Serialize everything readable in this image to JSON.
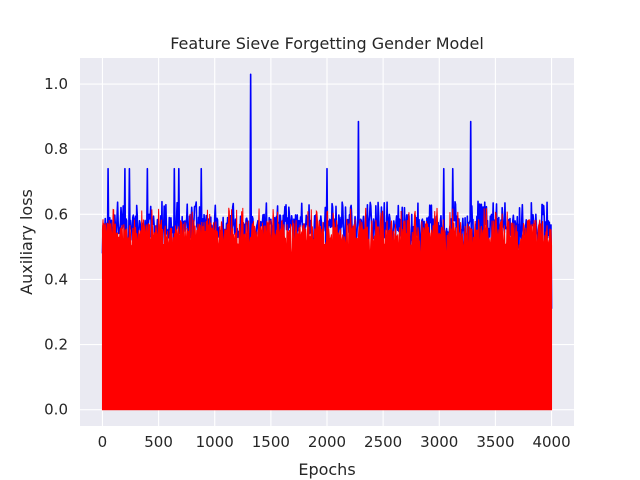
{
  "chart_data": {
    "type": "line",
    "title": "Feature Sieve Forgetting Gender Model",
    "xlabel": "Epochs",
    "ylabel": "Auxiliary loss",
    "xlim": [
      -200,
      4200
    ],
    "ylim": [
      -0.05,
      1.08
    ],
    "xticks": [
      0,
      500,
      1000,
      1500,
      2000,
      2500,
      3000,
      3500,
      4000
    ],
    "yticks": [
      0.0,
      0.2,
      0.4,
      0.6,
      0.8,
      1.0
    ],
    "xtick_labels": [
      "0",
      "500",
      "1000",
      "1500",
      "2000",
      "2500",
      "3000",
      "3500",
      "4000"
    ],
    "ytick_labels": [
      "0.0",
      "0.2",
      "0.4",
      "0.6",
      "0.8",
      "1.0"
    ],
    "grid": true,
    "style": "seaborn-darkgrid",
    "series": [
      {
        "color": "#0000ff",
        "x_range": [
          0,
          4000
        ],
        "base_level": 0.56,
        "noise_range": [
          0.46,
          0.64
        ],
        "end_value": 0.31,
        "spikes": [
          {
            "x": 50,
            "y": 0.74
          },
          {
            "x": 200,
            "y": 0.74
          },
          {
            "x": 240,
            "y": 0.74
          },
          {
            "x": 400,
            "y": 0.74
          },
          {
            "x": 640,
            "y": 0.74
          },
          {
            "x": 680,
            "y": 0.74
          },
          {
            "x": 880,
            "y": 0.74
          },
          {
            "x": 1320,
            "y": 1.03
          },
          {
            "x": 2000,
            "y": 0.74
          },
          {
            "x": 2280,
            "y": 0.885
          },
          {
            "x": 3040,
            "y": 0.74
          },
          {
            "x": 3120,
            "y": 0.74
          },
          {
            "x": 3280,
            "y": 0.885
          }
        ]
      },
      {
        "color": "#ff0000",
        "x_range": [
          0,
          4000
        ],
        "base_level": 0.54,
        "fill_to_zero": true,
        "noise_range": [
          0.45,
          0.62
        ]
      }
    ]
  },
  "colors": {
    "background": "#eaeaf2",
    "grid": "#ffffff",
    "text": "#262626"
  }
}
